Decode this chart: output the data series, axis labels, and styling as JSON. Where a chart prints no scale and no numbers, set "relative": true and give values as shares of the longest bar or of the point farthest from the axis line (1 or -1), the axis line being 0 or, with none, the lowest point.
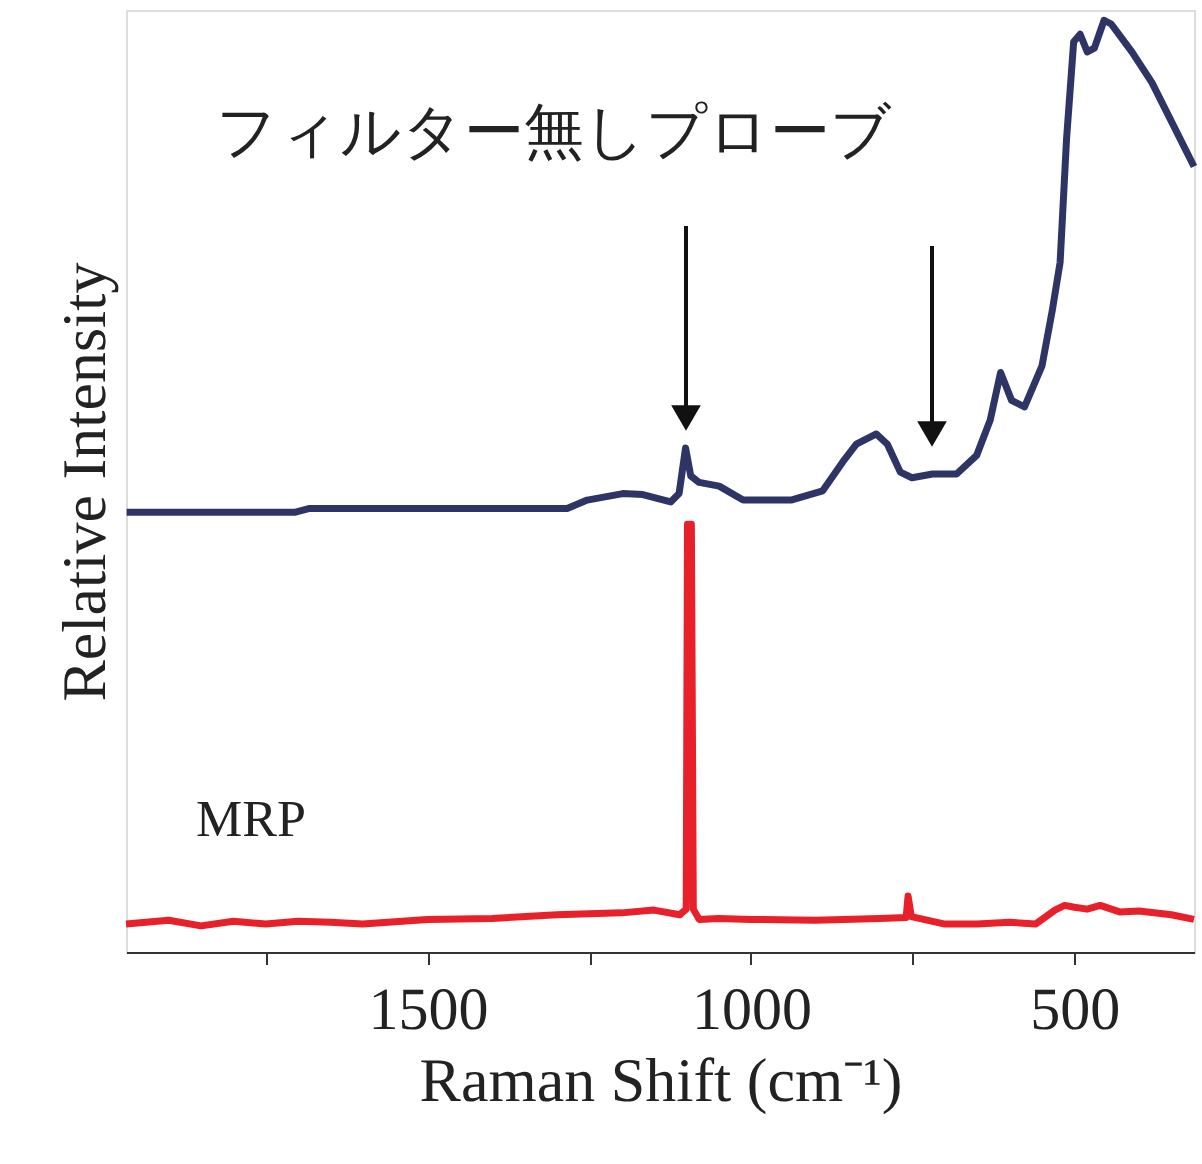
{
  "chart_data": {
    "type": "line",
    "relative": true,
    "xlabel": "Raman Shift (cm⁻¹)",
    "ylabel": "Relative Intensity",
    "xlim": [
      1966,
      315
    ],
    "xticks": [
      {
        "value": 1750,
        "label": null
      },
      1500,
      {
        "value": 1250,
        "label": null
      },
      1000,
      {
        "value": 750,
        "label": null
      },
      500
    ],
    "grid": false,
    "marker": "none",
    "line_style": "solid",
    "series": [
      {
        "name": "フィルター無しプローブ",
        "color": "#2e3566",
        "x": [
          1965,
          1704,
          1682,
          1284,
          1253,
          1198,
          1167,
          1124,
          1111,
          1101,
          1093,
          1080,
          1049,
          1012,
          938,
          889,
          858,
          837,
          806,
          789,
          769,
          751,
          719,
          682,
          651,
          630,
          614,
          597,
          577,
          550,
          534,
          522,
          512,
          501,
          491,
          480,
          469,
          454,
          443,
          411,
          380,
          315
        ],
        "values": [
          0.472,
          0.472,
          0.476,
          0.476,
          0.485,
          0.492,
          0.491,
          0.483,
          0.492,
          0.541,
          0.511,
          0.504,
          0.5,
          0.485,
          0.485,
          0.495,
          0.526,
          0.545,
          0.556,
          0.545,
          0.515,
          0.509,
          0.513,
          0.513,
          0.533,
          0.571,
          0.622,
          0.592,
          0.585,
          0.629,
          0.689,
          0.74,
          0.873,
          0.977,
          0.985,
          0.966,
          0.97,
          1.0,
          0.996,
          0.966,
          0.933,
          0.843
        ]
      },
      {
        "name": "MRP",
        "color": "#e8202a",
        "x": [
          1966,
          1900,
          1850,
          1800,
          1750,
          1700,
          1650,
          1600,
          1500,
          1400,
          1300,
          1200,
          1150,
          1110,
          1100,
          1098,
          1092,
          1089,
          1080,
          1050,
          1000,
          900,
          800,
          760,
          757,
          752,
          700,
          650,
          600,
          560,
          530,
          515,
          500,
          480,
          460,
          430,
          400,
          350,
          315
        ],
        "values": [
          0.03,
          0.034,
          0.028,
          0.033,
          0.03,
          0.033,
          0.032,
          0.03,
          0.035,
          0.036,
          0.04,
          0.042,
          0.045,
          0.04,
          0.046,
          0.459,
          0.459,
          0.046,
          0.035,
          0.036,
          0.035,
          0.034,
          0.036,
          0.037,
          0.06,
          0.038,
          0.03,
          0.03,
          0.032,
          0.03,
          0.045,
          0.05,
          0.048,
          0.046,
          0.05,
          0.043,
          0.044,
          0.04,
          0.035
        ]
      }
    ]
  }
}
